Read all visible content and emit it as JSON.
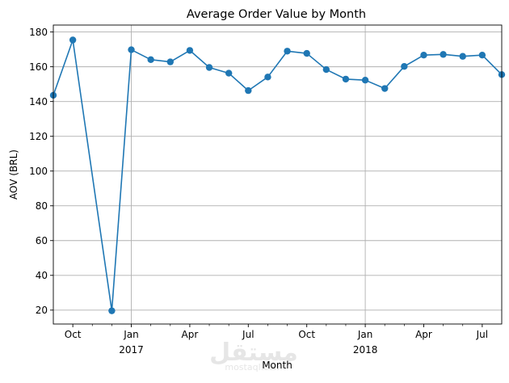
{
  "chart_data": {
    "type": "line",
    "title": "Average Order Value by Month",
    "xlabel": "Month",
    "ylabel": "AOV (BRL)",
    "ylim": [
      12,
      184
    ],
    "yticks": [
      20,
      40,
      60,
      80,
      100,
      120,
      140,
      160,
      180
    ],
    "x_range": [
      "2016-09-01",
      "2018-08-01"
    ],
    "grid": true,
    "color": "#1f77b4",
    "x": [
      "2016-09",
      "2016-10",
      "2016-12",
      "2017-01",
      "2017-02",
      "2017-03",
      "2017-04",
      "2017-05",
      "2017-06",
      "2017-07",
      "2017-08",
      "2017-09",
      "2017-10",
      "2017-11",
      "2017-12",
      "2018-01",
      "2018-02",
      "2018-03",
      "2018-04",
      "2018-05",
      "2018-06",
      "2018-07",
      "2018-08"
    ],
    "values": [
      143.6,
      175.4,
      19.6,
      169.8,
      164.1,
      162.8,
      169.4,
      159.6,
      156.3,
      146.3,
      154.1,
      169.0,
      167.7,
      158.4,
      152.9,
      152.3,
      147.5,
      160.2,
      166.7,
      167.1,
      166.0,
      166.7,
      155.5
    ],
    "month_ticks": [
      {
        "date": "2016-10",
        "label": "Oct",
        "sub": ""
      },
      {
        "date": "2017-01",
        "label": "Jan",
        "sub": "2017"
      },
      {
        "date": "2017-04",
        "label": "Apr",
        "sub": ""
      },
      {
        "date": "2017-07",
        "label": "Jul",
        "sub": ""
      },
      {
        "date": "2017-10",
        "label": "Oct",
        "sub": ""
      },
      {
        "date": "2018-01",
        "label": "Jan",
        "sub": "2018"
      },
      {
        "date": "2018-04",
        "label": "Apr",
        "sub": ""
      },
      {
        "date": "2018-07",
        "label": "Jul",
        "sub": ""
      }
    ],
    "minor_ticks": [
      "2016-11",
      "2016-12",
      "2017-02",
      "2017-03",
      "2017-05",
      "2017-06",
      "2017-08",
      "2017-09",
      "2017-11",
      "2017-12",
      "2018-02",
      "2018-03",
      "2018-05",
      "2018-06"
    ],
    "vertical_grid": [
      "2017-01",
      "2018-01"
    ]
  },
  "watermark": {
    "text": "مستقل",
    "subtext": "mostaql.com"
  }
}
